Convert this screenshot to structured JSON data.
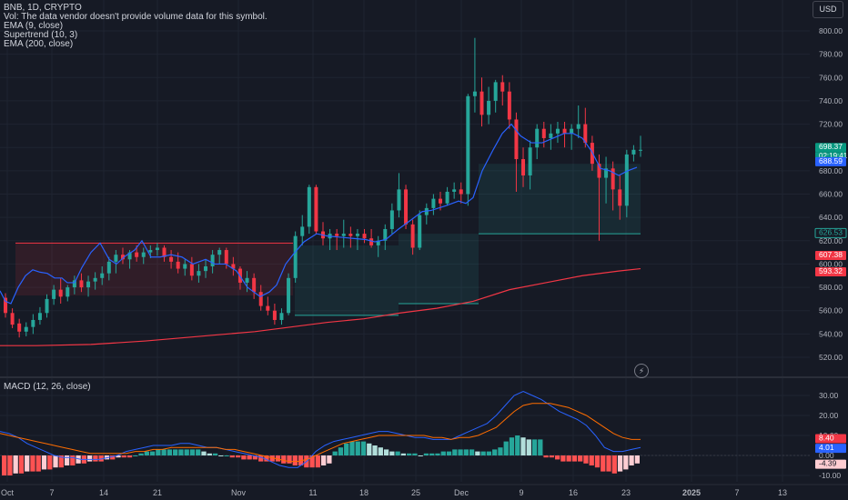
{
  "legend": {
    "symbol": "BNB, 1D, CRYPTO",
    "volume_note": "Vol: The data vendor doesn't provide volume data for this symbol.",
    "ema9": "EMA (9, close)",
    "supertrend": "Supertrend (10, 3)",
    "ema200": "EMA (200, close)"
  },
  "macd_legend": "MACD (12, 26, close)",
  "currency_button": "USD",
  "labels": {
    "price": "698.37",
    "countdown": "02:19:41",
    "ema9": "688.59",
    "supertrend": "626.53",
    "ema200_a": "607.38",
    "ema200_b": "593.32",
    "macd": "8.40",
    "signal": "4.01",
    "hist": "-4.39"
  },
  "colors": {
    "background": "#161a25",
    "up": "#26a69a",
    "down": "#f23645",
    "ema9": "#2962ff",
    "ema200": "#f23645",
    "macd_line": "#2962ff",
    "signal_line": "#ff6d00",
    "supertrend_up": "#26a69a",
    "supertrend_down": "#f23645"
  },
  "chart_data": {
    "type": "candlestick",
    "symbol": "BNB",
    "timeframe": "1D",
    "price_axis": {
      "min": 520,
      "max": 800,
      "ticks": [
        520,
        540,
        560,
        580,
        600,
        620,
        640,
        660,
        680,
        700,
        720,
        740,
        760,
        780,
        800
      ]
    },
    "macd_axis": {
      "min": -10,
      "max": 30,
      "ticks": [
        30,
        20,
        10,
        0,
        -10
      ]
    },
    "x_tick_labels": [
      "Oct",
      "7",
      "14",
      "21",
      "Nov",
      "11",
      "18",
      "25",
      "Dec",
      "9",
      "16",
      "23",
      "2025",
      "7",
      "13"
    ],
    "ohlc": [
      [
        571,
        575,
        554,
        558
      ],
      [
        558,
        562,
        545,
        548
      ],
      [
        549,
        553,
        537,
        542
      ],
      [
        542,
        550,
        538,
        546
      ],
      [
        546,
        557,
        540,
        552
      ],
      [
        552,
        563,
        548,
        558
      ],
      [
        558,
        574,
        554,
        570
      ],
      [
        570,
        582,
        565,
        578
      ],
      [
        578,
        588,
        566,
        572
      ],
      [
        572,
        582,
        568,
        580
      ],
      [
        580,
        590,
        574,
        586
      ],
      [
        586,
        592,
        576,
        580
      ],
      [
        580,
        590,
        572,
        585
      ],
      [
        585,
        593,
        578,
        588
      ],
      [
        588,
        598,
        582,
        592
      ],
      [
        592,
        606,
        586,
        602
      ],
      [
        602,
        612,
        592,
        608
      ],
      [
        608,
        614,
        600,
        604
      ],
      [
        604,
        612,
        596,
        610
      ],
      [
        610,
        616,
        602,
        606
      ],
      [
        606,
        614,
        600,
        610
      ],
      [
        610,
        616,
        605,
        612
      ],
      [
        612,
        618,
        607,
        614
      ],
      [
        614,
        616,
        602,
        606
      ],
      [
        606,
        612,
        596,
        602
      ],
      [
        602,
        610,
        592,
        596
      ],
      [
        596,
        604,
        590,
        600
      ],
      [
        600,
        606,
        586,
        590
      ],
      [
        590,
        600,
        584,
        594
      ],
      [
        594,
        604,
        588,
        598
      ],
      [
        598,
        612,
        592,
        608
      ],
      [
        608,
        614,
        600,
        612
      ],
      [
        612,
        614,
        596,
        600
      ],
      [
        600,
        606,
        590,
        596
      ],
      [
        596,
        598,
        578,
        584
      ],
      [
        584,
        594,
        576,
        588
      ],
      [
        588,
        592,
        570,
        576
      ],
      [
        576,
        582,
        560,
        564
      ],
      [
        564,
        572,
        556,
        560
      ],
      [
        560,
        566,
        548,
        552
      ],
      [
        552,
        562,
        548,
        558
      ],
      [
        558,
        592,
        556,
        588
      ],
      [
        588,
        628,
        584,
        624
      ],
      [
        624,
        642,
        616,
        632
      ],
      [
        632,
        668,
        626,
        666
      ],
      [
        666,
        668,
        626,
        628
      ],
      [
        628,
        636,
        616,
        622
      ],
      [
        622,
        630,
        612,
        626
      ],
      [
        626,
        630,
        612,
        624
      ],
      [
        624,
        638,
        614,
        626
      ],
      [
        626,
        632,
        614,
        624
      ],
      [
        624,
        630,
        612,
        626
      ],
      [
        626,
        630,
        618,
        622
      ],
      [
        622,
        630,
        614,
        616
      ],
      [
        616,
        624,
        606,
        620
      ],
      [
        620,
        634,
        612,
        630
      ],
      [
        630,
        652,
        626,
        646
      ],
      [
        646,
        678,
        640,
        664
      ],
      [
        664,
        668,
        630,
        634
      ],
      [
        634,
        638,
        608,
        614
      ],
      [
        614,
        646,
        612,
        642
      ],
      [
        642,
        652,
        634,
        648
      ],
      [
        648,
        660,
        642,
        656
      ],
      [
        656,
        662,
        646,
        652
      ],
      [
        652,
        666,
        650,
        662
      ],
      [
        662,
        670,
        656,
        664
      ],
      [
        664,
        670,
        652,
        660
      ],
      [
        660,
        746,
        650,
        744
      ],
      [
        744,
        794,
        730,
        748
      ],
      [
        748,
        760,
        718,
        728
      ],
      [
        728,
        752,
        720,
        740
      ],
      [
        740,
        758,
        730,
        756
      ],
      [
        756,
        762,
        736,
        748
      ],
      [
        748,
        756,
        716,
        724
      ],
      [
        724,
        730,
        662,
        690
      ],
      [
        690,
        700,
        666,
        676
      ],
      [
        676,
        706,
        664,
        700
      ],
      [
        700,
        720,
        690,
        716
      ],
      [
        716,
        722,
        700,
        708
      ],
      [
        708,
        720,
        698,
        712
      ],
      [
        712,
        722,
        704,
        716
      ],
      [
        716,
        722,
        700,
        712
      ],
      [
        712,
        720,
        698,
        716
      ],
      [
        716,
        736,
        708,
        720
      ],
      [
        720,
        734,
        700,
        704
      ],
      [
        704,
        710,
        680,
        686
      ],
      [
        686,
        694,
        620,
        674
      ],
      [
        674,
        692,
        652,
        682
      ],
      [
        682,
        688,
        646,
        664
      ],
      [
        664,
        676,
        638,
        650
      ],
      [
        650,
        698,
        640,
        694
      ],
      [
        694,
        702,
        688,
        698
      ],
      [
        698,
        710,
        692,
        698
      ]
    ],
    "series": [
      {
        "name": "EMA (9, close)",
        "values": [
          [
            0,
            577
          ],
          [
            6,
            568
          ],
          [
            12,
            566
          ],
          [
            20,
            580
          ],
          [
            28,
            590
          ],
          [
            36,
            595
          ],
          [
            44,
            593
          ],
          [
            52,
            592
          ],
          [
            60,
            588
          ],
          [
            68,
            588
          ],
          [
            74,
            584
          ],
          [
            82,
            584
          ],
          [
            90,
            597
          ],
          [
            100,
            610
          ],
          [
            110,
            618
          ],
          [
            120,
            604
          ],
          [
            128,
            600
          ],
          [
            138,
            607
          ],
          [
            148,
            612
          ],
          [
            156,
            620
          ],
          [
            166,
            606
          ],
          [
            176,
            606
          ],
          [
            188,
            608
          ],
          [
            200,
            606
          ],
          [
            212,
            600
          ],
          [
            226,
            604
          ],
          [
            236,
            600
          ],
          [
            248,
            600
          ],
          [
            260,
            594
          ],
          [
            272,
            580
          ],
          [
            286,
            572
          ],
          [
            296,
            576
          ],
          [
            304,
            582
          ],
          [
            314,
            600
          ],
          [
            322,
            608
          ],
          [
            334,
            619
          ],
          [
            348,
            626
          ],
          [
            360,
            624
          ],
          [
            374,
            623
          ],
          [
            388,
            622
          ],
          [
            402,
            621
          ],
          [
            412,
            619
          ],
          [
            424,
            621
          ],
          [
            438,
            630
          ],
          [
            452,
            638
          ],
          [
            464,
            645
          ],
          [
            474,
            646
          ],
          [
            490,
            650
          ],
          [
            504,
            654
          ],
          [
            512,
            652
          ],
          [
            520,
            657
          ],
          [
            530,
            680
          ],
          [
            542,
            698
          ],
          [
            552,
            712
          ],
          [
            562,
            720
          ],
          [
            572,
            710
          ],
          [
            584,
            704
          ],
          [
            596,
            704
          ],
          [
            608,
            708
          ],
          [
            620,
            712
          ],
          [
            630,
            712
          ],
          [
            640,
            708
          ],
          [
            650,
            697
          ],
          [
            660,
            682
          ],
          [
            670,
            680
          ],
          [
            680,
            676
          ],
          [
            690,
            680
          ],
          [
            700,
            683
          ]
        ]
      },
      {
        "name": "EMA (200, close)",
        "values": [
          [
            0,
            530
          ],
          [
            40,
            530
          ],
          [
            100,
            531
          ],
          [
            160,
            534
          ],
          [
            220,
            538
          ],
          [
            280,
            542
          ],
          [
            320,
            546
          ],
          [
            360,
            550
          ],
          [
            400,
            553
          ],
          [
            440,
            558
          ],
          [
            480,
            562
          ],
          [
            520,
            568
          ],
          [
            560,
            578
          ],
          [
            600,
            584
          ],
          [
            640,
            590
          ],
          [
            680,
            594
          ],
          [
            704,
            596
          ]
        ]
      },
      {
        "name": "Supertrend (10, 3)",
        "values": [
          {
            "from": 17,
            "to": 322,
            "value": 618,
            "trend": "down"
          },
          {
            "from": 324,
            "to": 438,
            "value": 556,
            "trend": "up"
          },
          {
            "from": 438,
            "to": 526,
            "value": 566,
            "trend": "up"
          },
          {
            "from": 526,
            "to": 704,
            "value": 626,
            "trend": "up"
          }
        ]
      }
    ],
    "macd": {
      "histogram": [
        -10,
        -10,
        -9,
        -9,
        -8,
        -8,
        -8,
        -7,
        -7,
        -6,
        -6,
        -5,
        -5,
        -4,
        -4,
        -3,
        -3,
        -3,
        -2,
        -2,
        -1,
        -1,
        -1,
        0,
        1,
        2,
        2,
        3,
        3,
        3,
        3,
        3,
        3,
        3,
        3,
        2,
        1,
        1,
        0,
        0,
        -1,
        -1,
        -2,
        -2,
        -2,
        -3,
        -3,
        -3,
        -3,
        -4,
        -4,
        -5,
        -5,
        -6,
        -6,
        -6,
        -5,
        -4,
        2,
        4,
        6,
        7,
        7,
        7,
        6,
        5,
        4,
        3,
        2,
        2,
        1,
        1,
        1,
        0,
        1,
        1,
        1,
        2,
        2,
        3,
        3,
        3,
        3,
        2,
        2,
        2,
        3,
        4,
        7,
        9,
        10,
        9,
        8,
        8,
        8,
        -1,
        -1,
        -2,
        -3,
        -3,
        -3,
        -3,
        -4,
        -5,
        -6,
        -8,
        -8,
        -9,
        -8,
        -7,
        -5,
        -4
      ],
      "macd_line": [
        12,
        11,
        9,
        6,
        4,
        2,
        0,
        -1,
        -1,
        -2,
        -2,
        -2,
        -1,
        0,
        2,
        3,
        4,
        5,
        5,
        5,
        6,
        6,
        5,
        4,
        4,
        3,
        2,
        1,
        0,
        -1,
        -3,
        -5,
        -6,
        -6,
        -3,
        2,
        5,
        7,
        8,
        9,
        10,
        11,
        12,
        12,
        11,
        10,
        9,
        9,
        8,
        8,
        8,
        10,
        12,
        14,
        16,
        20,
        25,
        30,
        32,
        30,
        28,
        25,
        22,
        20,
        18,
        15,
        10,
        4,
        2,
        2,
        3,
        4
      ],
      "signal_line": [
        11,
        10,
        9,
        8,
        7,
        6,
        5,
        4,
        3,
        2,
        1,
        1,
        1,
        1,
        1,
        2,
        2,
        3,
        3,
        4,
        4,
        4,
        4,
        4,
        4,
        3,
        3,
        2,
        1,
        0,
        -1,
        -2,
        -3,
        -3,
        -2,
        0,
        2,
        4,
        6,
        7,
        8,
        9,
        10,
        10,
        10,
        10,
        10,
        10,
        9,
        9,
        8,
        9,
        9,
        10,
        12,
        14,
        18,
        22,
        25,
        26,
        26,
        26,
        25,
        24,
        22,
        20,
        17,
        14,
        11,
        9,
        8,
        8
      ]
    }
  }
}
